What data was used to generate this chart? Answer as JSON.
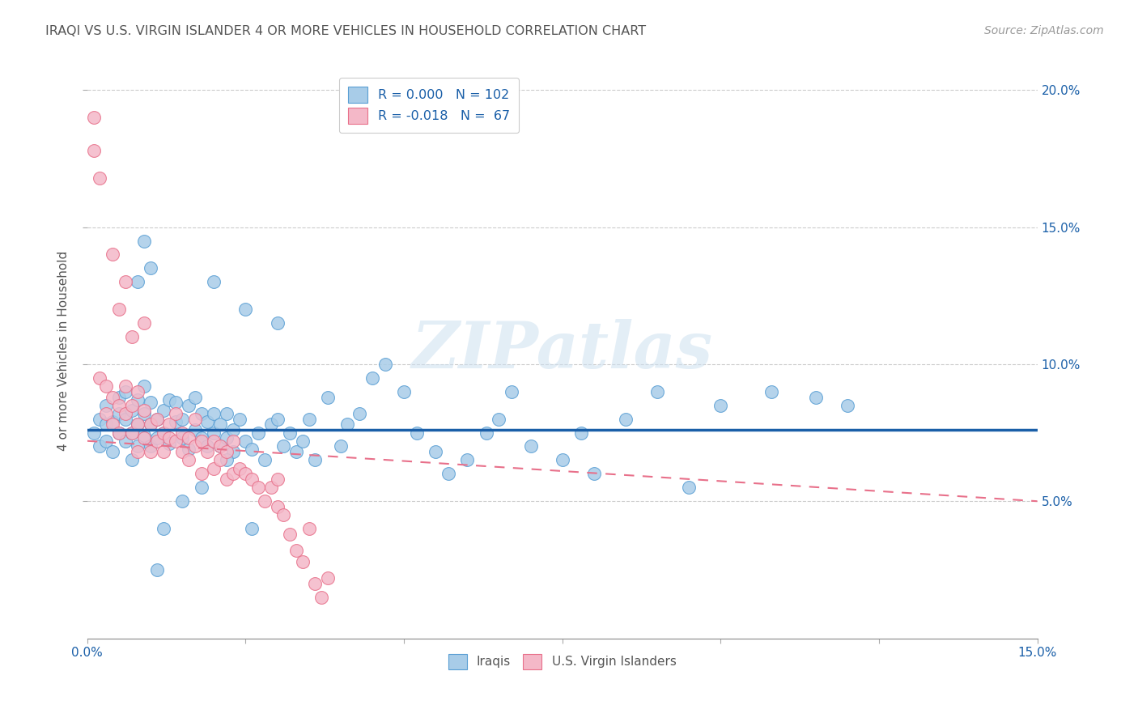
{
  "title": "IRAQI VS U.S. VIRGIN ISLANDER 4 OR MORE VEHICLES IN HOUSEHOLD CORRELATION CHART",
  "source": "Source: ZipAtlas.com",
  "ylabel": "4 or more Vehicles in Household",
  "xlim": [
    0.0,
    0.15
  ],
  "ylim": [
    0.0,
    0.21
  ],
  "yticks": [
    0.05,
    0.1,
    0.15,
    0.2
  ],
  "ytick_labels": [
    "5.0%",
    "10.0%",
    "15.0%",
    "20.0%"
  ],
  "xtick_positions": [
    0.0,
    0.025,
    0.05,
    0.075,
    0.1,
    0.125,
    0.15
  ],
  "xtick_labels": [
    "0.0%",
    "",
    "",
    "",
    "",
    "",
    "15.0%"
  ],
  "blue_color": "#a8cce8",
  "pink_color": "#f4b8c8",
  "blue_edge_color": "#5a9fd4",
  "pink_edge_color": "#e8708a",
  "blue_line_color": "#1a5fa8",
  "pink_line_color": "#e8708a",
  "R_blue": 0.0,
  "N_blue": 102,
  "R_pink": -0.018,
  "N_pink": 67,
  "legend_text_color": "#1a5fa8",
  "title_color": "#555555",
  "axis_color": "#1a5fa8",
  "watermark": "ZIPatlas",
  "blue_trend_y0": 0.076,
  "blue_trend_y1": 0.076,
  "pink_trend_y0": 0.072,
  "pink_trend_y1": 0.05,
  "blue_scatter_x": [
    0.001,
    0.002,
    0.002,
    0.003,
    0.003,
    0.003,
    0.004,
    0.004,
    0.005,
    0.005,
    0.005,
    0.006,
    0.006,
    0.006,
    0.007,
    0.007,
    0.007,
    0.008,
    0.008,
    0.008,
    0.009,
    0.009,
    0.009,
    0.01,
    0.01,
    0.01,
    0.011,
    0.011,
    0.012,
    0.012,
    0.013,
    0.013,
    0.014,
    0.014,
    0.015,
    0.015,
    0.016,
    0.016,
    0.017,
    0.017,
    0.018,
    0.018,
    0.019,
    0.019,
    0.02,
    0.02,
    0.021,
    0.021,
    0.022,
    0.022,
    0.023,
    0.023,
    0.024,
    0.025,
    0.026,
    0.027,
    0.028,
    0.029,
    0.03,
    0.031,
    0.032,
    0.033,
    0.034,
    0.035,
    0.036,
    0.038,
    0.04,
    0.041,
    0.043,
    0.045,
    0.047,
    0.05,
    0.052,
    0.055,
    0.057,
    0.06,
    0.063,
    0.065,
    0.067,
    0.07,
    0.075,
    0.078,
    0.08,
    0.085,
    0.09,
    0.095,
    0.1,
    0.108,
    0.115,
    0.12,
    0.02,
    0.025,
    0.03,
    0.008,
    0.009,
    0.01,
    0.011,
    0.012,
    0.015,
    0.018,
    0.022,
    0.026
  ],
  "blue_scatter_y": [
    0.075,
    0.08,
    0.07,
    0.078,
    0.072,
    0.085,
    0.079,
    0.068,
    0.082,
    0.075,
    0.088,
    0.08,
    0.072,
    0.09,
    0.083,
    0.075,
    0.065,
    0.078,
    0.087,
    0.07,
    0.082,
    0.074,
    0.092,
    0.078,
    0.07,
    0.086,
    0.08,
    0.073,
    0.083,
    0.075,
    0.087,
    0.071,
    0.079,
    0.086,
    0.073,
    0.08,
    0.085,
    0.069,
    0.076,
    0.088,
    0.073,
    0.082,
    0.07,
    0.079,
    0.075,
    0.082,
    0.07,
    0.078,
    0.073,
    0.082,
    0.076,
    0.068,
    0.08,
    0.072,
    0.069,
    0.075,
    0.065,
    0.078,
    0.08,
    0.07,
    0.075,
    0.068,
    0.072,
    0.08,
    0.065,
    0.088,
    0.07,
    0.078,
    0.082,
    0.095,
    0.1,
    0.09,
    0.075,
    0.068,
    0.06,
    0.065,
    0.075,
    0.08,
    0.09,
    0.07,
    0.065,
    0.075,
    0.06,
    0.08,
    0.09,
    0.055,
    0.085,
    0.09,
    0.088,
    0.085,
    0.13,
    0.12,
    0.115,
    0.13,
    0.145,
    0.135,
    0.025,
    0.04,
    0.05,
    0.055,
    0.065,
    0.04
  ],
  "pink_scatter_x": [
    0.001,
    0.001,
    0.002,
    0.002,
    0.003,
    0.003,
    0.004,
    0.004,
    0.005,
    0.005,
    0.005,
    0.006,
    0.006,
    0.007,
    0.007,
    0.008,
    0.008,
    0.008,
    0.009,
    0.009,
    0.01,
    0.01,
    0.011,
    0.011,
    0.012,
    0.012,
    0.013,
    0.013,
    0.014,
    0.014,
    0.015,
    0.015,
    0.016,
    0.016,
    0.017,
    0.017,
    0.018,
    0.018,
    0.019,
    0.02,
    0.02,
    0.021,
    0.021,
    0.022,
    0.022,
    0.023,
    0.023,
    0.024,
    0.025,
    0.026,
    0.027,
    0.028,
    0.029,
    0.03,
    0.03,
    0.031,
    0.032,
    0.033,
    0.034,
    0.035,
    0.036,
    0.037,
    0.038,
    0.004,
    0.006,
    0.007,
    0.009
  ],
  "pink_scatter_y": [
    0.19,
    0.178,
    0.168,
    0.095,
    0.082,
    0.092,
    0.078,
    0.088,
    0.085,
    0.075,
    0.12,
    0.082,
    0.092,
    0.075,
    0.085,
    0.078,
    0.068,
    0.09,
    0.073,
    0.083,
    0.078,
    0.068,
    0.08,
    0.072,
    0.075,
    0.068,
    0.073,
    0.078,
    0.082,
    0.072,
    0.075,
    0.068,
    0.073,
    0.065,
    0.07,
    0.08,
    0.072,
    0.06,
    0.068,
    0.072,
    0.062,
    0.065,
    0.07,
    0.058,
    0.068,
    0.06,
    0.072,
    0.062,
    0.06,
    0.058,
    0.055,
    0.05,
    0.055,
    0.048,
    0.058,
    0.045,
    0.038,
    0.032,
    0.028,
    0.04,
    0.02,
    0.015,
    0.022,
    0.14,
    0.13,
    0.11,
    0.115
  ]
}
